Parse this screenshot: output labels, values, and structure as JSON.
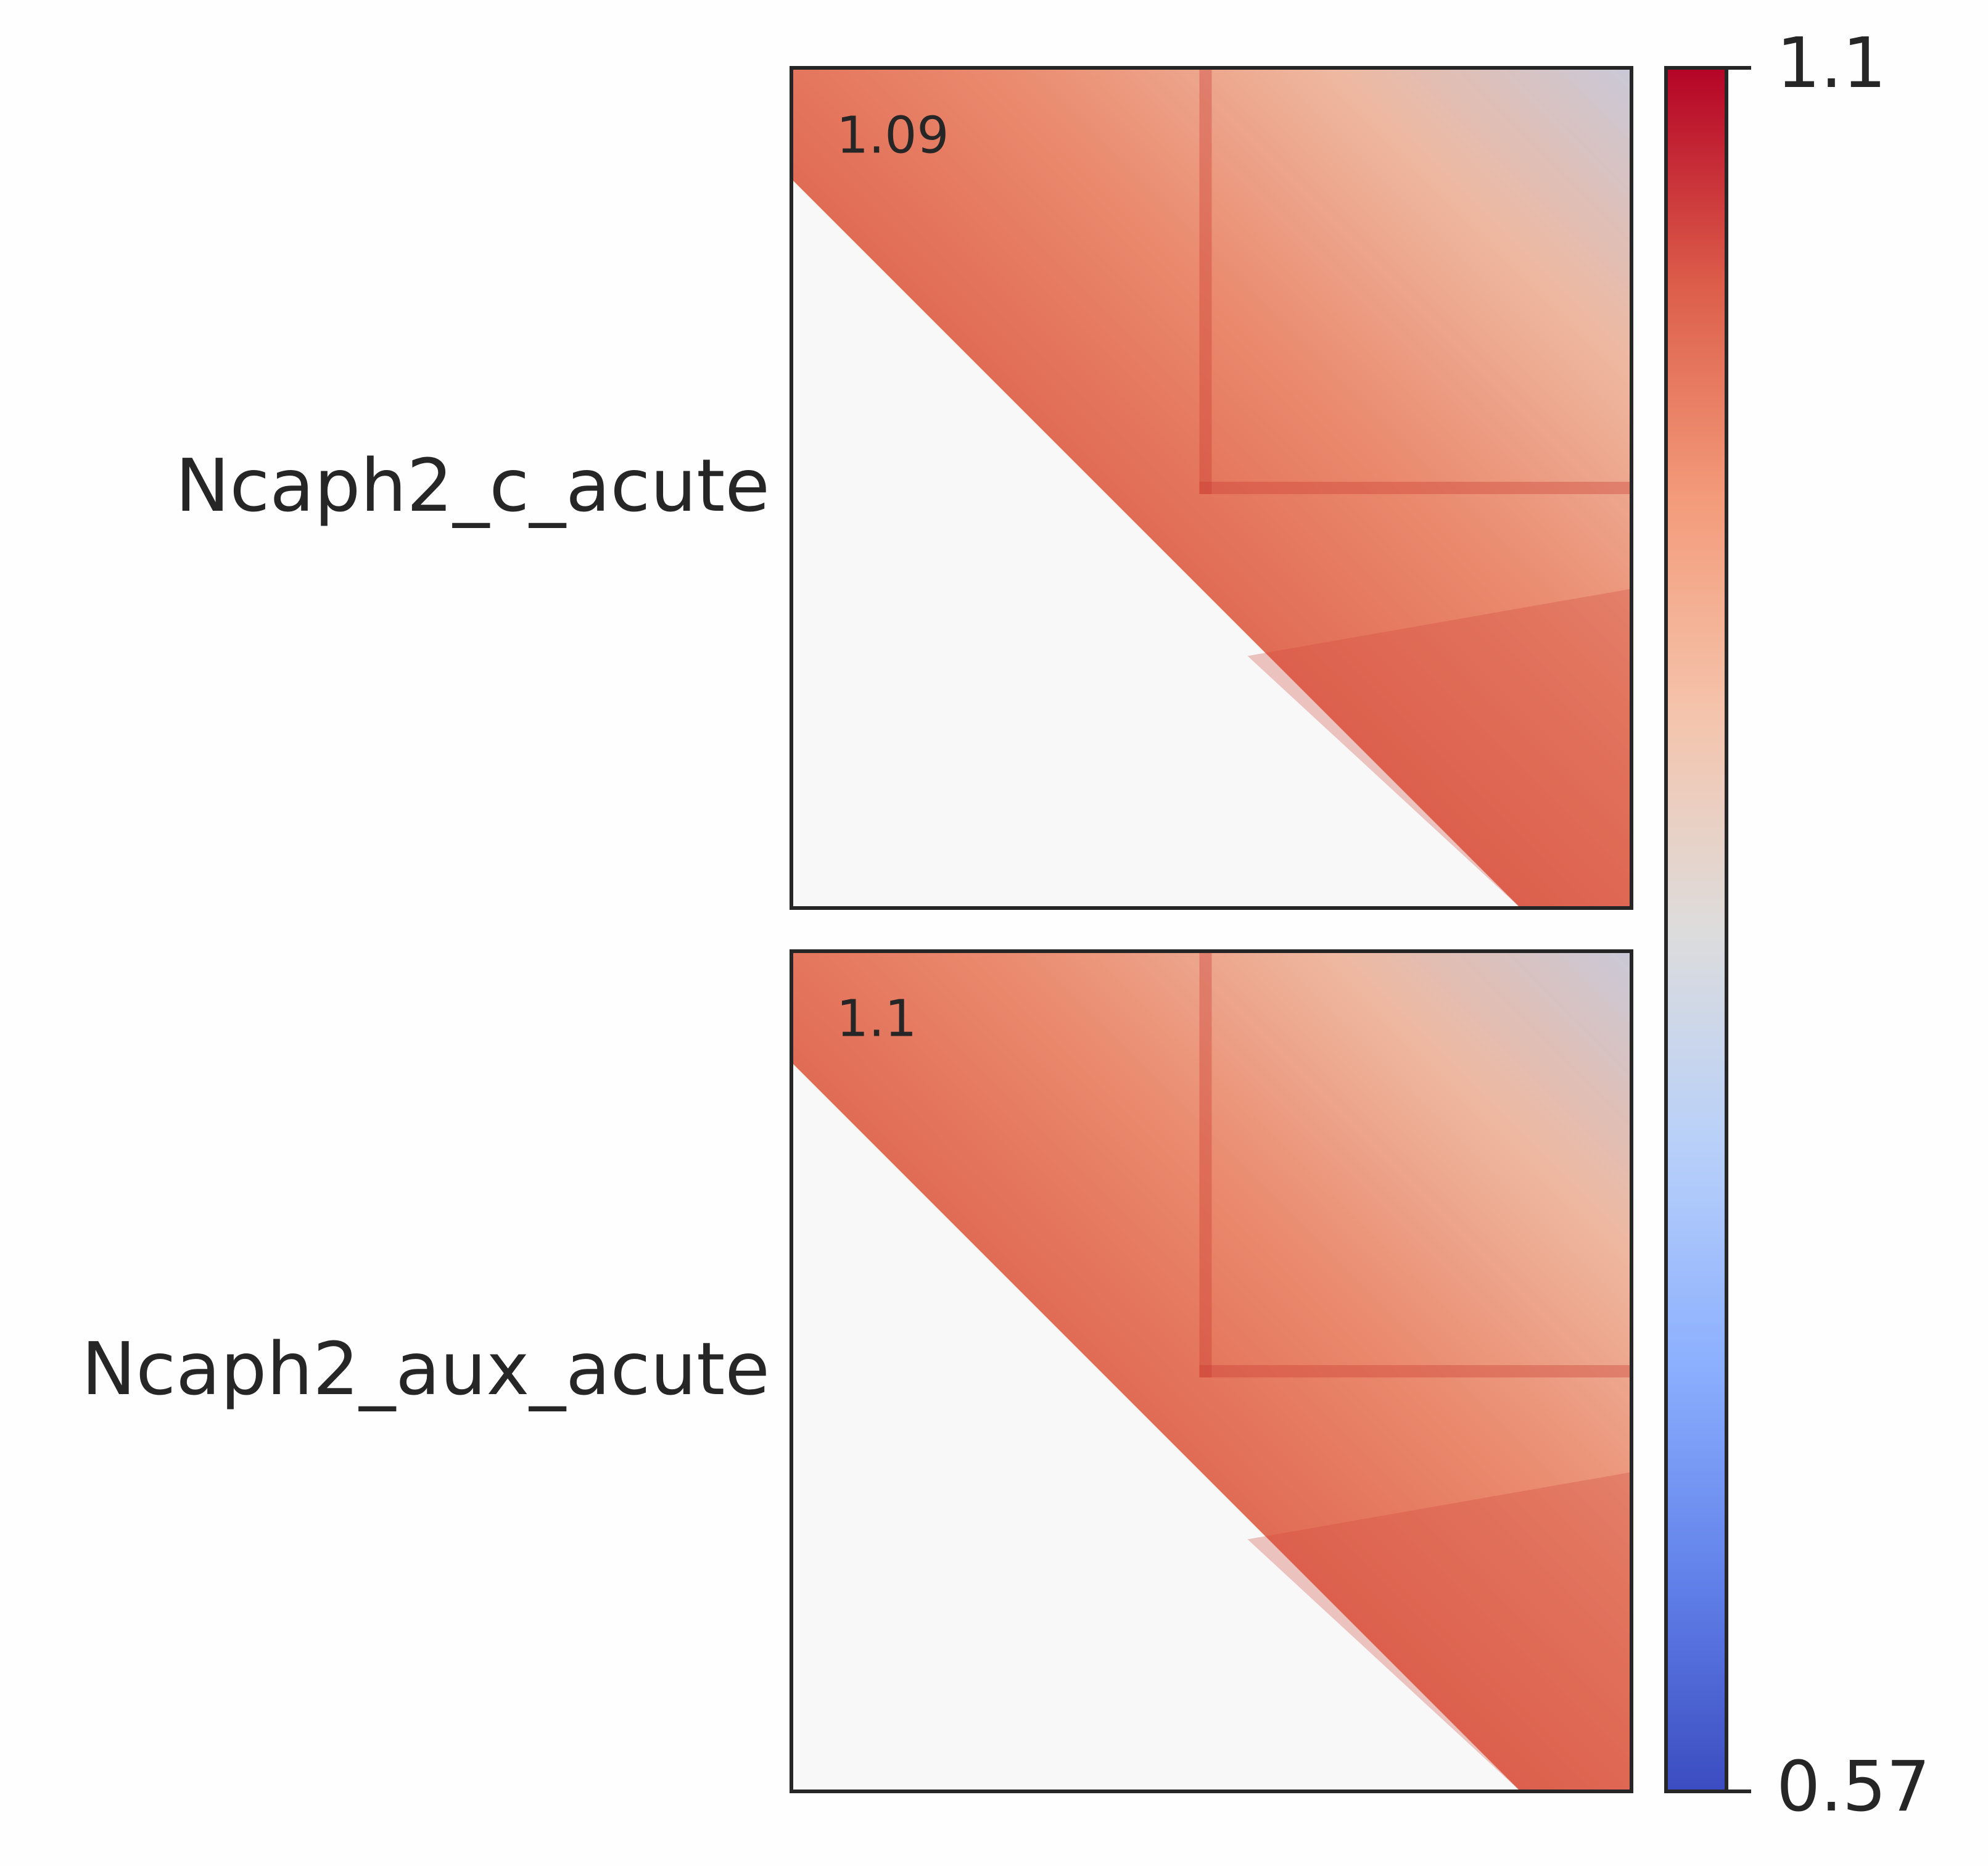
{
  "chart_data": {
    "type": "heatmap",
    "panels": [
      {
        "label": "Ncaph2_c_acute",
        "annotation": 1.09
      },
      {
        "label": "Ncaph2_aux_acute",
        "annotation": 1.1
      }
    ],
    "colorbar": {
      "lim": [
        0.57,
        1.1
      ],
      "ticks": [
        1.1,
        0.57
      ],
      "colormap": "coolwarm"
    }
  }
}
